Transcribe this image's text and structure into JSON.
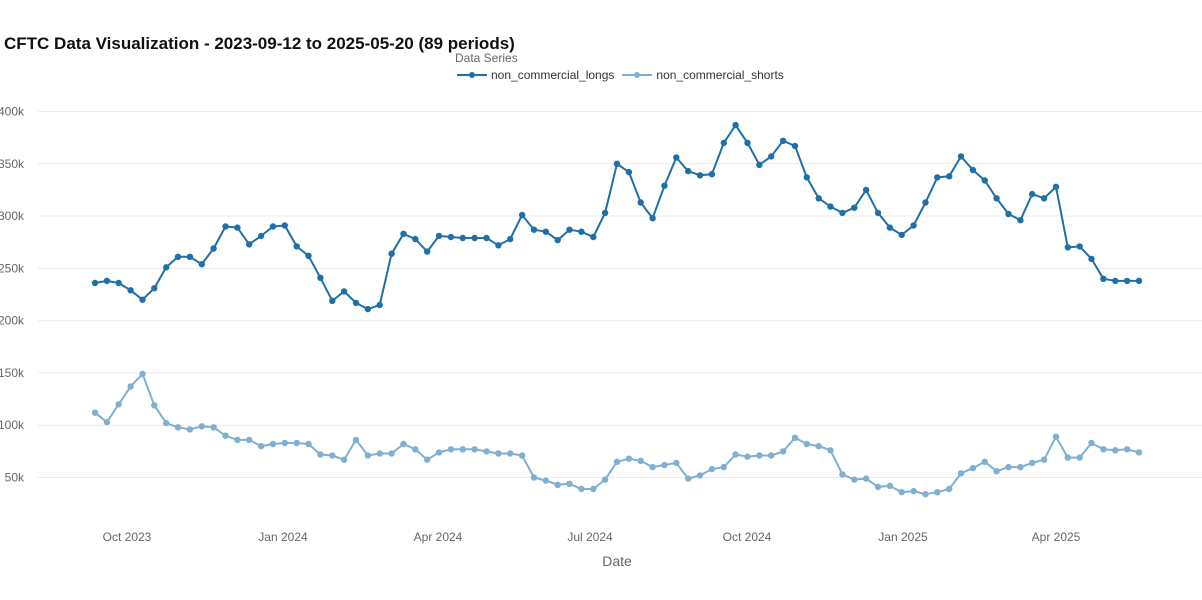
{
  "title": "CFTC Data Visualization - 2023-09-12 to 2025-05-20 (89 periods)",
  "legend": {
    "title": "Data Series",
    "items": [
      {
        "label": "non_commercial_longs",
        "color": "#1f6fa8"
      },
      {
        "label": "non_commercial_shorts",
        "color": "#7fb0d2"
      }
    ]
  },
  "chart_data": {
    "type": "line",
    "title": "CFTC Data Visualization - 2023-09-12 to 2025-05-20 (89 periods)",
    "xlabel": "Date",
    "ylabel": "",
    "x_start": "2023-09-12",
    "x_end": "2025-05-20",
    "x_interval": "weekly",
    "x_ticks": [
      "Oct 2023",
      "Jan 2024",
      "Apr 2024",
      "Jul 2024",
      "Oct 2024",
      "Jan 2025",
      "Apr 2025"
    ],
    "y_ticks": [
      "50k",
      "100k",
      "150k",
      "200k",
      "250k",
      "300k",
      "350k",
      "400k"
    ],
    "ylim": [
      0,
      400000
    ],
    "grid": true,
    "legend_position": "top-center",
    "series": [
      {
        "name": "non_commercial_longs",
        "color": "#1f6fa8",
        "values": [
          236000,
          238000,
          236000,
          229000,
          220000,
          231000,
          251000,
          261000,
          261000,
          254000,
          269000,
          290000,
          289000,
          273000,
          281000,
          290000,
          291000,
          271000,
          262000,
          241000,
          219000,
          228000,
          217000,
          211000,
          215000,
          264000,
          283000,
          278000,
          266000,
          281000,
          280000,
          279000,
          279000,
          279000,
          272000,
          278000,
          301000,
          287000,
          285000,
          277000,
          287000,
          285000,
          280000,
          303000,
          350000,
          342000,
          313000,
          298000,
          329000,
          356000,
          343000,
          339000,
          340000,
          370000,
          387000,
          370000,
          349000,
          357000,
          372000,
          367000,
          337000,
          317000,
          309000,
          303000,
          308000,
          325000,
          303000,
          289000,
          282000,
          291000,
          313000,
          337000,
          338000,
          357000,
          344000,
          334000,
          317000,
          302000,
          296000,
          321000,
          317000,
          328000,
          270000,
          271000,
          259000,
          240000,
          238000,
          238000,
          238000
        ]
      },
      {
        "name": "non_commercial_shorts",
        "color": "#7fb0d2",
        "values": [
          112000,
          103000,
          120000,
          137000,
          149000,
          119000,
          102000,
          98000,
          96000,
          99000,
          98000,
          90000,
          86000,
          86000,
          80000,
          82000,
          83000,
          83000,
          82000,
          72000,
          71000,
          67000,
          86000,
          71000,
          73000,
          73000,
          82000,
          77000,
          67000,
          74000,
          77000,
          77000,
          77000,
          75000,
          73000,
          73000,
          71000,
          50000,
          47000,
          43000,
          44000,
          39000,
          39000,
          48000,
          65000,
          68000,
          66000,
          60000,
          62000,
          64000,
          49000,
          52000,
          58000,
          60000,
          72000,
          70000,
          71000,
          71000,
          75000,
          88000,
          82000,
          80000,
          76000,
          53000,
          48000,
          49000,
          41000,
          42000,
          36000,
          37000,
          34000,
          36000,
          39000,
          54000,
          59000,
          65000,
          56000,
          60000,
          60000,
          64000,
          67000,
          89000,
          69000,
          69000,
          83000,
          77000,
          76000,
          77000,
          74000
        ]
      }
    ]
  }
}
